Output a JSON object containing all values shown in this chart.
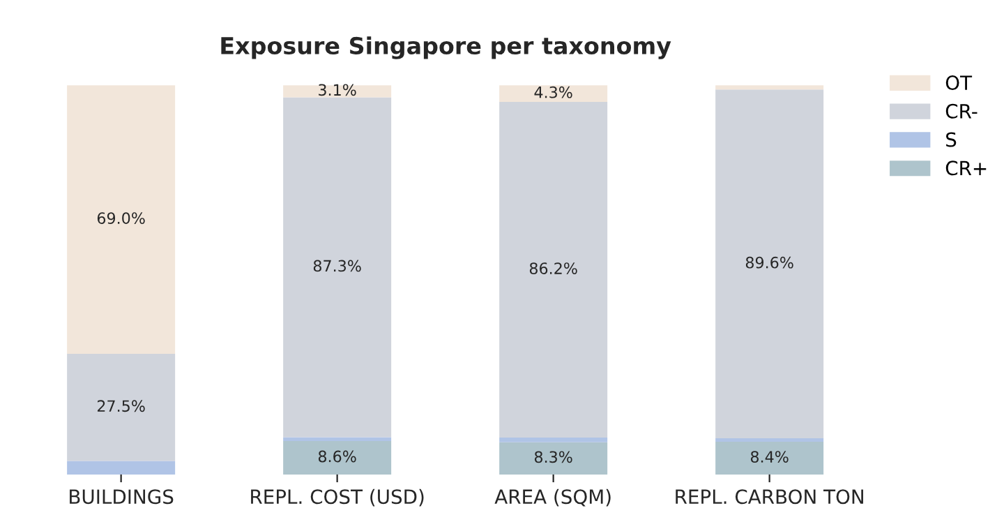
{
  "chart_data": {
    "type": "bar",
    "title": "Exposure Singapore per taxonomy",
    "stacked": true,
    "legend": "top right",
    "grid": false,
    "tick_labels": "x",
    "categories": [
      "BUILDINGS",
      "REPL. COST (USD)",
      "AREA (SQM)",
      "REPL. CARBON TON"
    ],
    "series": [
      {
        "name": "CR+",
        "color": "#aec4cc",
        "values": [
          0,
          8.6,
          8.3,
          8.4
        ],
        "value_labels": [
          null,
          "8.6%",
          "8.3%",
          "8.4%"
        ]
      },
      {
        "name": "S",
        "color": "#b0c4e6",
        "values": [
          3.5,
          1.0,
          1.2,
          0.9
        ],
        "value_labels": [
          null,
          null,
          null,
          null
        ]
      },
      {
        "name": "CR-",
        "color": "#d0d4dc",
        "values": [
          27.5,
          87.3,
          86.2,
          89.6
        ],
        "value_labels": [
          "27.5%",
          "87.3%",
          "86.2%",
          "89.6%"
        ]
      },
      {
        "name": "OT",
        "color": "#f2e6da",
        "values": [
          69.0,
          3.1,
          4.3,
          1.1
        ],
        "value_labels": [
          "69.0%",
          "3.1%",
          "4.3%",
          null
        ]
      }
    ]
  }
}
